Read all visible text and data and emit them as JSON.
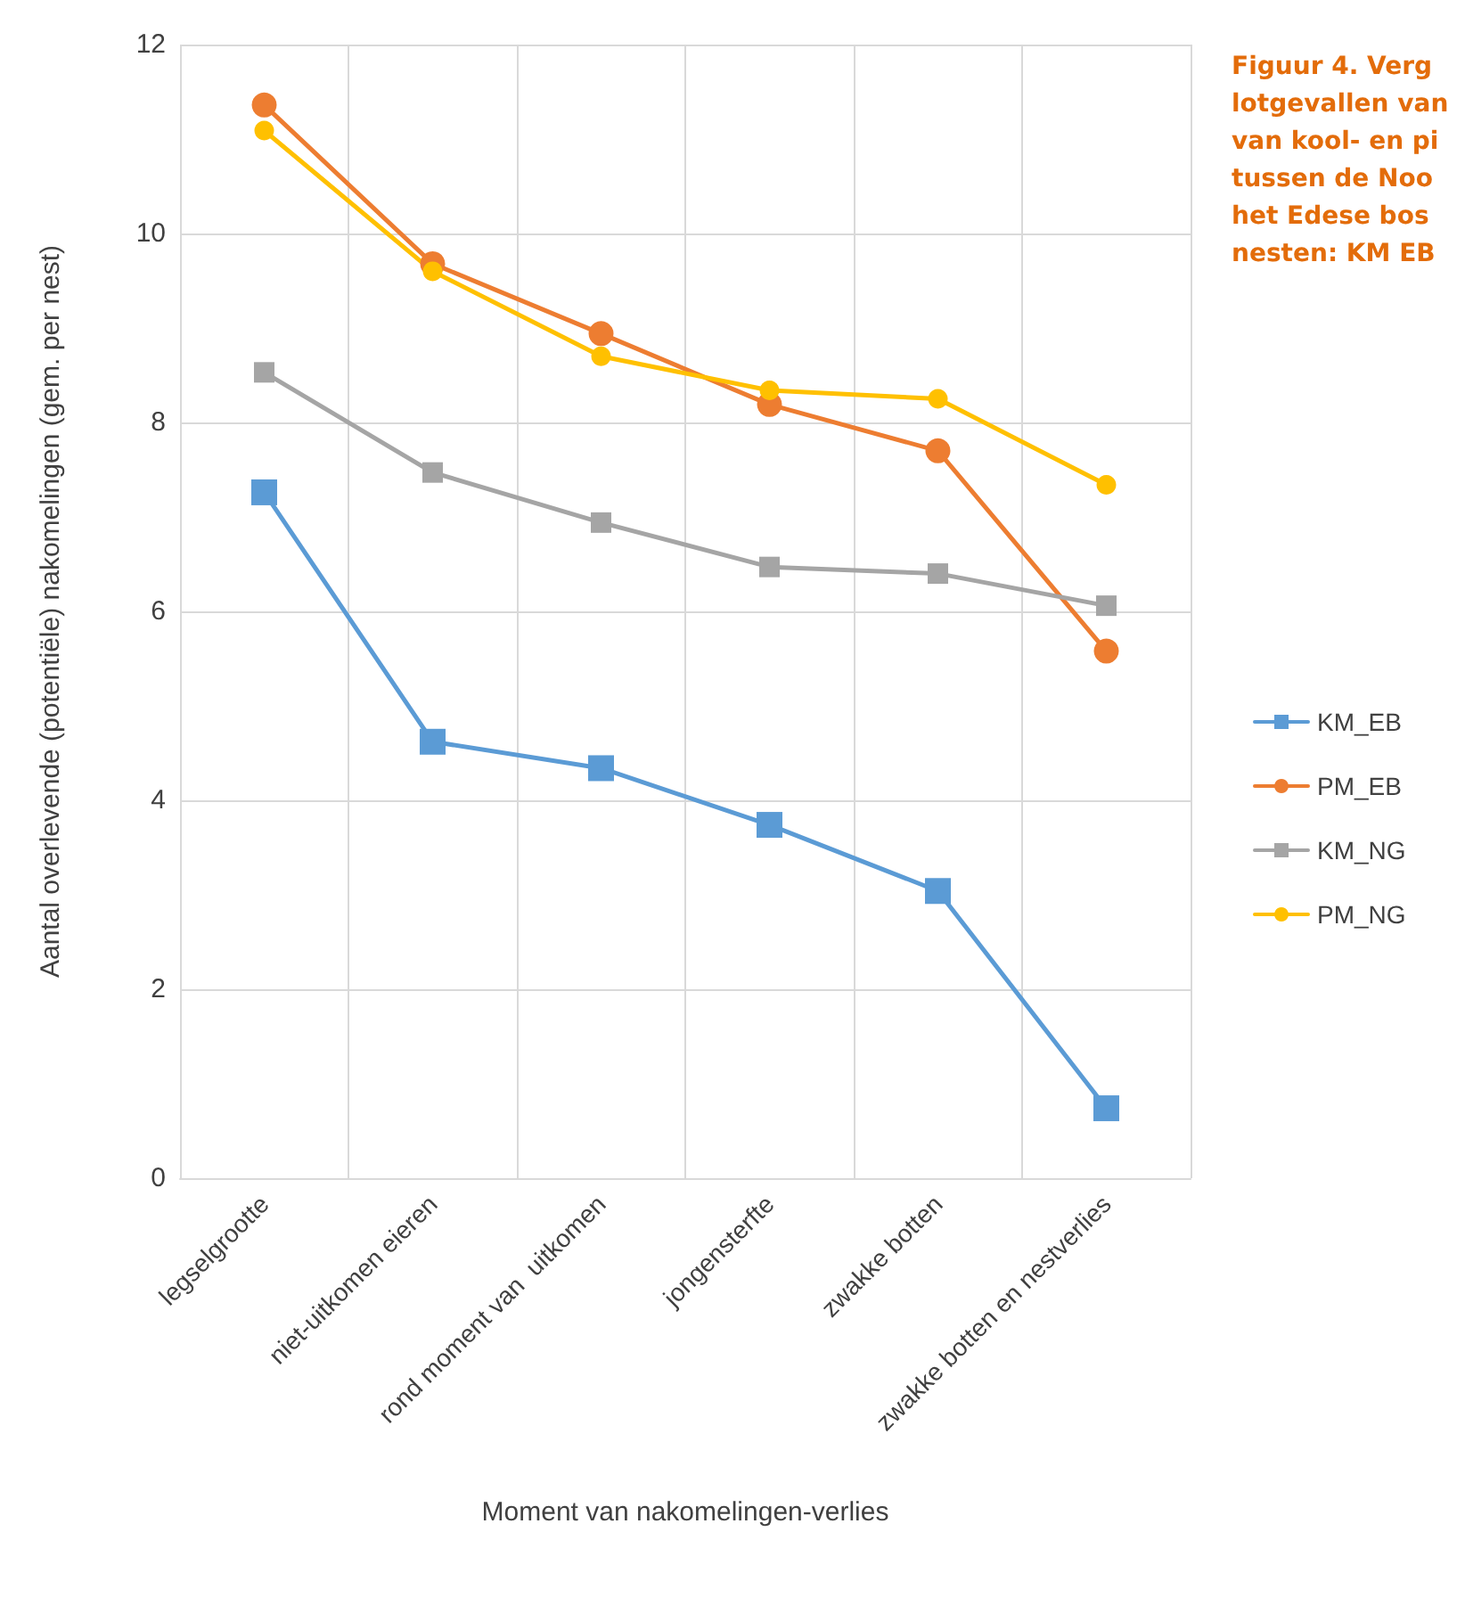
{
  "chart_data": {
    "type": "line",
    "title": "Figuur 4. Verg\nlotgevallen van\nvan kool- en pi\ntussen de Noo\nhet Edese bos\nnesten: KM EB",
    "xlabel": "Moment van nakomelingen-verlies",
    "ylabel": "Aantal overlevende (potentiële) nakomelingen (gem. per nest)",
    "categories": [
      "legselgrootte",
      "niet-uitkomen eieren",
      "rond moment van  uitkomen",
      "jongensterfte",
      "zwakke botten",
      "zwakke botten en nestverlies"
    ],
    "series": [
      {
        "name": "KM_EB",
        "color": "#5b9bd5",
        "marker": "square",
        "values": [
          7.26,
          4.62,
          4.34,
          3.74,
          3.04,
          0.74
        ]
      },
      {
        "name": "PM_EB",
        "color": "#ed7d31",
        "marker": "circle",
        "values": [
          11.36,
          9.68,
          8.94,
          8.19,
          7.7,
          5.58
        ]
      },
      {
        "name": "KM_NG",
        "color": "#a5a5a5",
        "marker": "square",
        "values": [
          8.53,
          7.47,
          6.94,
          6.47,
          6.4,
          6.06
        ]
      },
      {
        "name": "PM_NG",
        "color": "#ffc000",
        "marker": "circle",
        "values": [
          11.09,
          9.6,
          8.7,
          8.34,
          8.25,
          7.34
        ]
      }
    ],
    "ylim": [
      0,
      12
    ],
    "yticks": [
      0,
      2,
      4,
      6,
      8,
      10,
      12
    ],
    "grid": true,
    "legend": "right",
    "line_style": "solid"
  }
}
